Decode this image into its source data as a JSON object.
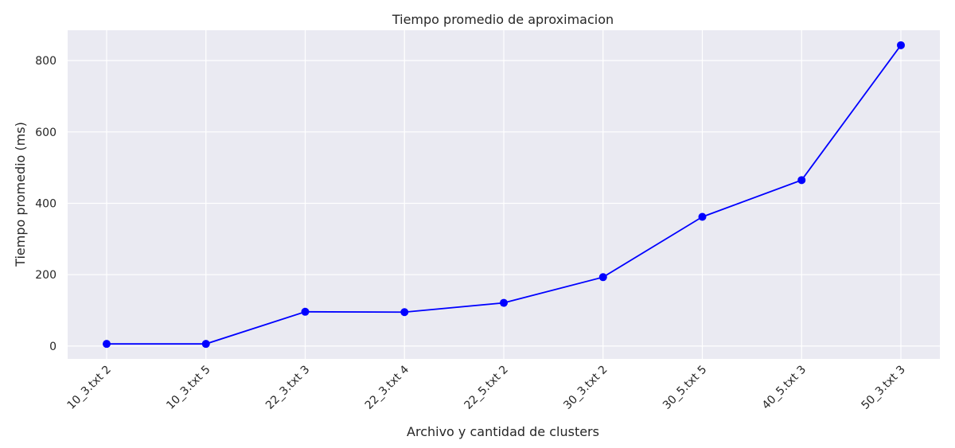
{
  "chart_data": {
    "type": "line",
    "title": "Tiempo promedio de aproximacion",
    "xlabel": "Archivo y cantidad de clusters",
    "ylabel": "Tiempo promedio (ms)",
    "categories": [
      "10_3.txt 2",
      "10_3.txt 5",
      "22_3.txt 3",
      "22_3.txt 4",
      "22_5.txt 2",
      "30_3.txt 2",
      "30_5.txt 5",
      "40_5.txt 3",
      "50_3.txt 3"
    ],
    "series": [
      {
        "values": [
          6,
          6,
          96,
          95,
          121,
          193,
          362,
          465,
          843
        ],
        "color": "#0000ff"
      }
    ],
    "yticks": [
      0,
      200,
      400,
      600,
      800
    ],
    "ylim": [
      -36,
      885
    ],
    "grid": true,
    "background": "#eaeaf2",
    "grid_color": "#ffffff"
  }
}
